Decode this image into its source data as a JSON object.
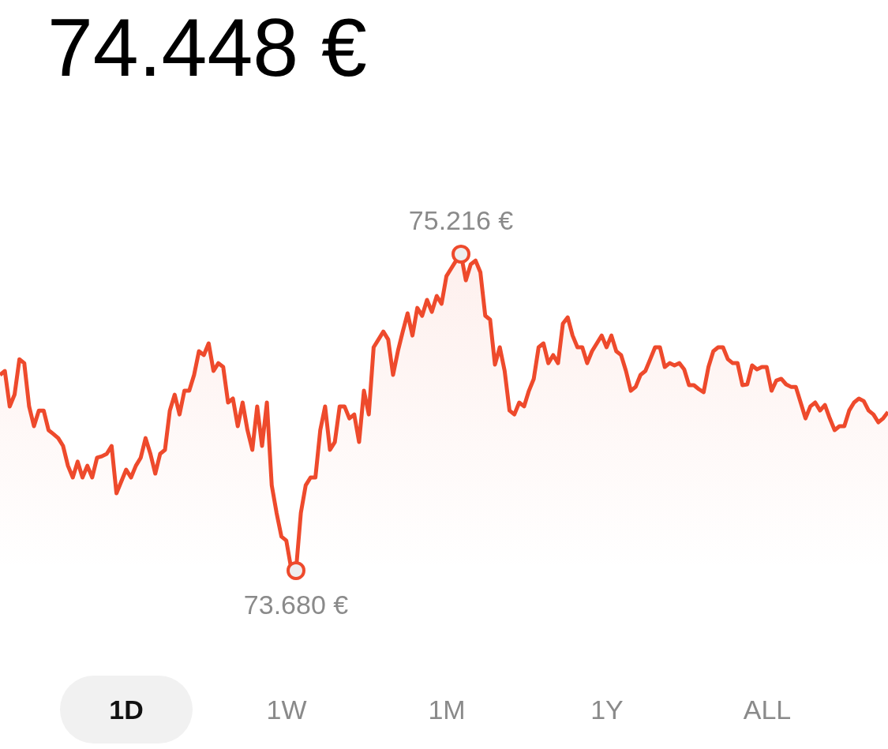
{
  "chart_data": {
    "type": "area",
    "title": "74.448 €",
    "color": "#ee4a2c",
    "marker": "none",
    "grid": false,
    "categories": [
      null,
      null,
      null,
      null,
      null,
      null,
      null,
      null,
      null,
      null,
      null,
      null,
      null,
      null,
      null,
      null,
      null,
      null,
      null,
      null,
      null,
      null,
      null,
      null,
      null,
      null,
      null,
      null,
      null,
      null,
      null,
      null,
      null,
      null,
      null,
      null,
      null,
      null,
      null,
      null,
      null,
      null,
      null,
      null,
      null,
      null,
      null,
      null,
      null,
      null,
      null,
      null,
      null,
      null,
      null,
      null,
      null,
      null,
      null,
      null,
      null,
      null,
      null,
      null,
      null,
      null,
      null,
      null,
      null,
      null,
      null,
      null,
      null,
      null,
      null,
      null,
      null,
      null,
      null,
      null,
      null,
      null,
      null,
      null,
      null,
      null,
      null,
      null,
      null,
      null,
      null,
      null,
      null,
      null,
      null,
      null,
      null,
      null,
      null,
      null,
      null,
      null,
      null,
      null,
      null,
      null,
      null,
      null,
      null,
      null,
      null,
      null,
      null,
      null,
      null,
      null,
      null,
      null,
      null,
      null,
      null,
      null,
      null,
      null,
      null,
      null,
      null,
      null,
      null,
      null,
      null,
      null,
      null,
      null,
      null,
      null,
      null,
      null,
      null,
      null,
      null,
      null,
      null,
      null,
      null,
      null,
      null,
      null,
      null,
      null,
      null,
      null,
      null,
      null,
      null,
      null,
      null,
      null,
      null,
      null,
      null,
      null,
      null,
      null,
      null,
      null,
      null,
      null,
      null,
      null,
      null,
      null,
      null,
      null,
      null,
      null,
      null,
      null,
      null,
      null,
      null,
      null,
      null,
      null
    ],
    "values": [
      74.63,
      74.649,
      74.477,
      74.534,
      74.706,
      74.687,
      74.477,
      74.381,
      74.457,
      74.457,
      74.362,
      74.343,
      74.323,
      74.285,
      74.189,
      74.132,
      74.209,
      74.132,
      74.189,
      74.132,
      74.228,
      74.235,
      74.247,
      74.285,
      74.055,
      74.113,
      74.17,
      74.132,
      74.189,
      74.228,
      74.323,
      74.247,
      74.151,
      74.247,
      74.266,
      74.457,
      74.534,
      74.438,
      74.553,
      74.553,
      74.63,
      74.745,
      74.726,
      74.783,
      74.649,
      74.687,
      74.668,
      74.496,
      74.515,
      74.381,
      74.496,
      74.362,
      74.266,
      74.477,
      74.285,
      74.496,
      74.094,
      73.96,
      73.845,
      73.826,
      73.691,
      73.68,
      73.96,
      74.094,
      74.132,
      74.132,
      74.362,
      74.477,
      74.266,
      74.304,
      74.477,
      74.477,
      74.419,
      74.438,
      74.304,
      74.553,
      74.438,
      74.764,
      74.802,
      74.84,
      74.802,
      74.63,
      74.745,
      74.84,
      74.929,
      74.821,
      74.955,
      74.917,
      74.994,
      74.936,
      75.013,
      74.975,
      75.109,
      75.147,
      75.185,
      75.216,
      75.089,
      75.166,
      75.185,
      75.128,
      74.917,
      74.898,
      74.68,
      74.764,
      74.649,
      74.457,
      74.438,
      74.496,
      74.477,
      74.553,
      74.611,
      74.764,
      74.783,
      74.687,
      74.726,
      74.687,
      74.879,
      74.909,
      74.821,
      74.764,
      74.764,
      74.687,
      74.745,
      74.783,
      74.821,
      74.764,
      74.821,
      74.745,
      74.726,
      74.649,
      74.553,
      74.572,
      74.63,
      74.649,
      74.706,
      74.764,
      74.764,
      74.668,
      74.687,
      74.676,
      74.687,
      74.657,
      74.58,
      74.58,
      74.561,
      74.546,
      74.668,
      74.745,
      74.764,
      74.764,
      74.706,
      74.687,
      74.687,
      74.58,
      74.584,
      74.676,
      74.657,
      74.668,
      74.668,
      74.553,
      74.603,
      74.611,
      74.584,
      74.572,
      74.572,
      74.496,
      74.419,
      74.477,
      74.496,
      74.457,
      74.484,
      74.419,
      74.362,
      74.381,
      74.381,
      74.457,
      74.496,
      74.515,
      74.503,
      74.457,
      74.438,
      74.4,
      74.419,
      74.45
    ],
    "value_labels": [
      null,
      null,
      null,
      null,
      null,
      null,
      null,
      null,
      null,
      null,
      null,
      null,
      null,
      null,
      null,
      null,
      null,
      null,
      null,
      null,
      null,
      null,
      null,
      null,
      null,
      null,
      null,
      null,
      null,
      null,
      null,
      null,
      null,
      null,
      null,
      null,
      null,
      null,
      null,
      null,
      null,
      null,
      null,
      null,
      null,
      null,
      null,
      null,
      null,
      null,
      null,
      null,
      null,
      null,
      null,
      null,
      null,
      null,
      null,
      null,
      null,
      "73.680 €",
      null,
      null,
      null,
      null,
      null,
      null,
      null,
      null,
      null,
      null,
      null,
      null,
      null,
      null,
      null,
      null,
      null,
      null,
      null,
      null,
      null,
      null,
      null,
      null,
      null,
      null,
      null,
      null,
      null,
      null,
      null,
      null,
      null,
      "75.216 €",
      null,
      null,
      null,
      null,
      null,
      null,
      null,
      null,
      null,
      null,
      null,
      null,
      null,
      null,
      null,
      null,
      null,
      null,
      null,
      null,
      null,
      null,
      null,
      null,
      null,
      null,
      null,
      null,
      null,
      null,
      null,
      null,
      null,
      null,
      null,
      null,
      null,
      null,
      null,
      null,
      null,
      null,
      null,
      null,
      null,
      null,
      null,
      null,
      null,
      null,
      null,
      null,
      null,
      null,
      null,
      null,
      null,
      null,
      null,
      null,
      null,
      null,
      null,
      null,
      null,
      null,
      null,
      null,
      null,
      null,
      null,
      null,
      null,
      null,
      null,
      null,
      null,
      null,
      null,
      null,
      null,
      null,
      null,
      null,
      null,
      null,
      null,
      null
    ],
    "annotations": [
      "1D",
      "1W",
      "1M",
      "1Y",
      "ALL"
    ]
  }
}
